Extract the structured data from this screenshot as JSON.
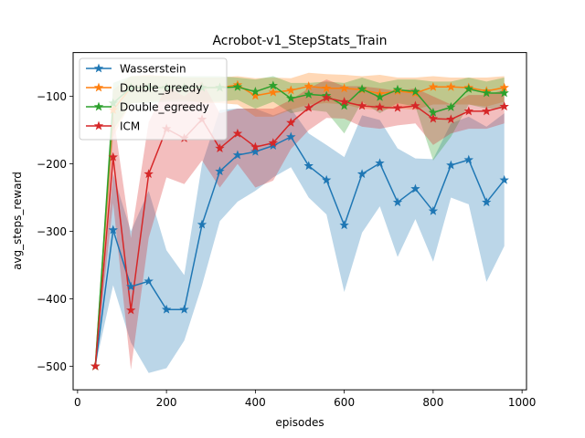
{
  "chart_data": {
    "type": "line",
    "title": "Acrobot-v1_StepStats_Train",
    "xlabel": "episodes",
    "ylabel": "avg_steps_reward",
    "xlim": [
      -10,
      1010
    ],
    "ylim": [
      -535,
      -35
    ],
    "xticks": [
      0,
      200,
      400,
      600,
      800,
      1000
    ],
    "yticks": [
      -500,
      -400,
      -300,
      -200,
      -100
    ],
    "legend_position": "top-left",
    "grid": false,
    "x": [
      40,
      80,
      120,
      160,
      200,
      240,
      280,
      320,
      360,
      400,
      440,
      480,
      520,
      560,
      600,
      640,
      680,
      720,
      760,
      800,
      840,
      880,
      920,
      960
    ],
    "series": [
      {
        "name": "Wasserstein",
        "color": "#1f77b4",
        "marker": "star",
        "values": [
          -500,
          -298,
          -382,
          -374,
          -416,
          -416,
          -290,
          -211,
          -187,
          -182,
          -173,
          -160,
          -203,
          -224,
          -291,
          -215,
          -199,
          -257,
          -237,
          -270,
          -202,
          -194,
          -257,
          -224
        ],
        "upper": [
          -500,
          -215,
          -300,
          -240,
          -328,
          -365,
          -200,
          -120,
          -118,
          -118,
          -128,
          -118,
          -155,
          -172,
          -190,
          -128,
          -135,
          -177,
          -192,
          -193,
          -140,
          -130,
          -145,
          -125
        ],
        "lower": [
          -500,
          -380,
          -465,
          -510,
          -503,
          -462,
          -380,
          -285,
          -256,
          -240,
          -220,
          -205,
          -250,
          -275,
          -390,
          -302,
          -263,
          -338,
          -282,
          -345,
          -250,
          -260,
          -375,
          -322
        ]
      },
      {
        "name": "Double_greedy",
        "color": "#ff7f0e",
        "marker": "star",
        "values": [
          -500,
          -120,
          -87,
          -87,
          -87,
          -87,
          -87,
          -87,
          -83,
          -99,
          -94,
          -91,
          -85,
          -88,
          -88,
          -90,
          -96,
          -92,
          -95,
          -86,
          -86,
          -87,
          -92,
          -87
        ],
        "upper": [
          -500,
          -90,
          -70,
          -68,
          -70,
          -72,
          -72,
          -72,
          -70,
          -73,
          -72,
          -73,
          -65,
          -67,
          -68,
          -70,
          -68,
          -72,
          -72,
          -70,
          -72,
          -72,
          -72,
          -70
        ],
        "lower": [
          -500,
          -160,
          -110,
          -108,
          -105,
          -105,
          -110,
          -110,
          -112,
          -130,
          -130,
          -120,
          -112,
          -110,
          -112,
          -118,
          -120,
          -118,
          -120,
          -112,
          -112,
          -112,
          -115,
          -108
        ]
      },
      {
        "name": "Double_egreedy",
        "color": "#2ca02c",
        "marker": "star",
        "values": [
          -500,
          -110,
          -87,
          -87,
          -87,
          -87,
          -87,
          -87,
          -86,
          -93,
          -84,
          -103,
          -97,
          -99,
          -114,
          -89,
          -101,
          -90,
          -93,
          -124,
          -116,
          -89,
          -95,
          -95
        ],
        "upper": [
          -500,
          -80,
          -70,
          -70,
          -70,
          -70,
          -70,
          -70,
          -72,
          -75,
          -70,
          -80,
          -80,
          -78,
          -80,
          -72,
          -80,
          -75,
          -75,
          -78,
          -78,
          -72,
          -78,
          -72
        ],
        "lower": [
          -500,
          -150,
          -110,
          -110,
          -108,
          -108,
          -108,
          -108,
          -105,
          -118,
          -108,
          -125,
          -120,
          -123,
          -155,
          -108,
          -125,
          -110,
          -115,
          -195,
          -160,
          -112,
          -118,
          -118
        ]
      },
      {
        "name": "ICM",
        "color": "#d62728",
        "marker": "star",
        "values": [
          -500,
          -190,
          -417,
          -215,
          -148,
          -162,
          -134,
          -177,
          -155,
          -175,
          -169,
          -139,
          -117,
          -102,
          -108,
          -114,
          -116,
          -117,
          -114,
          -133,
          -134,
          -122,
          -122,
          -115
        ],
        "upper": [
          -500,
          -125,
          -310,
          -138,
          -85,
          -100,
          -78,
          -125,
          -118,
          -118,
          -118,
          -105,
          -88,
          -75,
          -85,
          -85,
          -88,
          -92,
          -88,
          -100,
          -112,
          -98,
          -98,
          -90
        ],
        "lower": [
          -500,
          -258,
          -505,
          -310,
          -220,
          -230,
          -195,
          -235,
          -200,
          -235,
          -225,
          -178,
          -150,
          -132,
          -133,
          -145,
          -148,
          -143,
          -140,
          -172,
          -155,
          -148,
          -148,
          -140
        ]
      }
    ]
  }
}
